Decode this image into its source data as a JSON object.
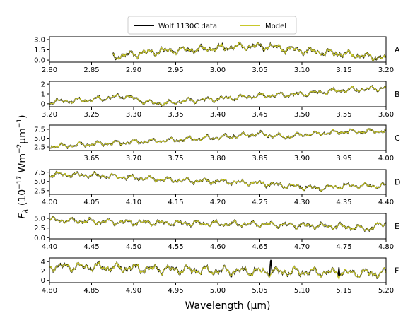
{
  "chart_data": {
    "type": "line",
    "xlabel": "Wavelength (µm)",
    "ylabel_parts": {
      "main": "F",
      "sub": "λ",
      "open": " (10",
      "exp1": "−17",
      "mid": " Wm",
      "exp2": "−2",
      "mu": "µm",
      "exp3": "−1",
      "close": ")"
    },
    "legend": {
      "placement": "top-center",
      "entries": [
        {
          "name": "Wolf 1130C data",
          "color": "#000000"
        },
        {
          "name": "Model",
          "color": "#c8c82a"
        }
      ]
    },
    "series_colors": {
      "data": "#000000",
      "model": "#c8c82a"
    },
    "panels": [
      {
        "letter": "A",
        "xlim": [
          2.8,
          3.2
        ],
        "ylim": [
          -0.3,
          3.4
        ],
        "data_xrange": [
          2.875,
          3.2
        ],
        "xticks": [
          "2.80",
          "2.85",
          "2.90",
          "2.95",
          "3.00",
          "3.05",
          "3.10",
          "3.15",
          "3.20"
        ],
        "yticks": [
          "0.0",
          "1.5",
          "3.0"
        ],
        "continuum": [
          [
            2.875,
            0.5
          ],
          [
            2.93,
            1.3
          ],
          [
            2.98,
            1.6
          ],
          [
            3.03,
            2.0
          ],
          [
            3.06,
            2.0
          ],
          [
            3.1,
            1.4
          ],
          [
            3.15,
            0.9
          ],
          [
            3.2,
            0.3
          ]
        ],
        "amplitude": 0.55,
        "features": []
      },
      {
        "letter": "B",
        "xlim": [
          3.2,
          3.6
        ],
        "ylim": [
          -0.3,
          2.3
        ],
        "data_xrange": [
          3.2,
          3.6
        ],
        "xticks": [
          "3.20",
          "3.25",
          "3.30",
          "3.35",
          "3.40",
          "3.45",
          "3.50",
          "3.55",
          "3.60"
        ],
        "yticks": [
          "0",
          "1",
          "2"
        ],
        "continuum": [
          [
            3.2,
            0.2
          ],
          [
            3.25,
            0.4
          ],
          [
            3.29,
            0.8
          ],
          [
            3.31,
            0.3
          ],
          [
            3.325,
            0.05
          ],
          [
            3.34,
            0.05
          ],
          [
            3.36,
            0.3
          ],
          [
            3.4,
            0.5
          ],
          [
            3.45,
            0.8
          ],
          [
            3.5,
            1.0
          ],
          [
            3.55,
            1.4
          ],
          [
            3.6,
            1.6
          ]
        ],
        "amplitude": 0.28,
        "features": []
      },
      {
        "letter": "C",
        "xlim": [
          3.6,
          4.0
        ],
        "ylim": [
          1.5,
          8.7
        ],
        "data_xrange": [
          3.6,
          4.0
        ],
        "xticks": [
          "3.65",
          "3.70",
          "3.75",
          "3.80",
          "3.85",
          "3.90",
          "3.95",
          "4.00"
        ],
        "yticks": [
          "2.5",
          "5.0",
          "7.5"
        ],
        "continuum": [
          [
            3.6,
            2.6
          ],
          [
            3.65,
            3.3
          ],
          [
            3.7,
            3.9
          ],
          [
            3.75,
            4.5
          ],
          [
            3.8,
            5.2
          ],
          [
            3.85,
            6.2
          ],
          [
            3.88,
            5.3
          ],
          [
            3.9,
            6.0
          ],
          [
            3.95,
            6.8
          ],
          [
            4.0,
            7.0
          ]
        ],
        "amplitude": 0.75,
        "features": []
      },
      {
        "letter": "D",
        "xlim": [
          4.0,
          4.4
        ],
        "ylim": [
          1.5,
          8.2
        ],
        "data_xrange": [
          4.0,
          4.4
        ],
        "xticks": [
          "4.00",
          "4.05",
          "4.10",
          "4.15",
          "4.20",
          "4.25",
          "4.30",
          "4.35",
          "4.40"
        ],
        "yticks": [
          "2.5",
          "5.0",
          "7.5"
        ],
        "continuum": [
          [
            4.0,
            6.9
          ],
          [
            4.05,
            6.7
          ],
          [
            4.1,
            6.0
          ],
          [
            4.15,
            5.3
          ],
          [
            4.2,
            5.0
          ],
          [
            4.25,
            4.5
          ],
          [
            4.3,
            3.5
          ],
          [
            4.32,
            3.1
          ],
          [
            4.35,
            3.8
          ],
          [
            4.4,
            3.8
          ]
        ],
        "amplitude": 0.75,
        "features": []
      },
      {
        "letter": "E",
        "xlim": [
          4.4,
          4.8
        ],
        "ylim": [
          -0.3,
          6.3
        ],
        "data_xrange": [
          4.4,
          4.8
        ],
        "xticks": [
          "4.40",
          "4.45",
          "4.50",
          "4.55",
          "4.60",
          "4.65",
          "4.70",
          "4.75",
          "4.80"
        ],
        "yticks": [
          "0.0",
          "2.5",
          "5.0"
        ],
        "continuum": [
          [
            4.4,
            4.6
          ],
          [
            4.45,
            4.2
          ],
          [
            4.5,
            4.0
          ],
          [
            4.55,
            3.8
          ],
          [
            4.6,
            3.6
          ],
          [
            4.65,
            3.5
          ],
          [
            4.7,
            3.2
          ],
          [
            4.75,
            2.9
          ],
          [
            4.78,
            2.3
          ],
          [
            4.8,
            4.0
          ]
        ],
        "amplitude": 0.8,
        "features": []
      },
      {
        "letter": "F",
        "xlim": [
          4.8,
          5.2
        ],
        "ylim": [
          -0.5,
          4.8
        ],
        "data_xrange": [
          4.8,
          5.2
        ],
        "xticks": [
          "4.80",
          "4.85",
          "4.90",
          "4.95",
          "5.00",
          "5.05",
          "5.10",
          "5.15",
          "5.20"
        ],
        "yticks": [
          "0",
          "2",
          "4"
        ],
        "continuum": [
          [
            4.8,
            3.0
          ],
          [
            4.85,
            2.9
          ],
          [
            4.9,
            2.6
          ],
          [
            4.95,
            2.3
          ],
          [
            5.0,
            2.0
          ],
          [
            5.05,
            1.9
          ],
          [
            5.1,
            1.8
          ],
          [
            5.15,
            1.6
          ],
          [
            5.2,
            1.5
          ]
        ],
        "amplitude": 1.0,
        "features": [
          [
            5.063,
            4.6,
            2.2
          ],
          [
            5.144,
            2.8,
            0.8
          ]
        ]
      }
    ]
  }
}
